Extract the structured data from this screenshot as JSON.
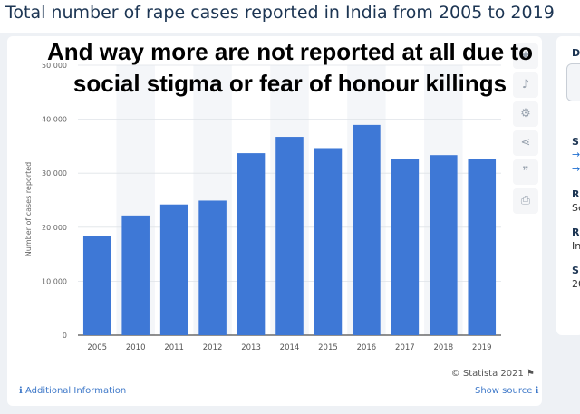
{
  "page": {
    "title": "Total number of rape cases reported in India from 2005 to 2019",
    "overlay_lines": [
      "And way more are not reported at all due to",
      "social stigma or fear of honour killings"
    ]
  },
  "toolbar": {
    "icons": [
      "star-icon",
      "bell-icon",
      "gear-icon",
      "share-icon",
      "quote-icon",
      "print-icon"
    ]
  },
  "footer": {
    "credit": "© Statista 2021",
    "additional_info": "Additional Information",
    "show_source": "Show source"
  },
  "side_panel": {
    "heading": "D",
    "items": [
      "S",
      "R",
      "Se",
      "R",
      "In",
      "S",
      "20"
    ]
  },
  "colors": {
    "bar": "#3e78d6",
    "title": "#1c3553",
    "link": "#3f79c9"
  },
  "chart_data": {
    "type": "bar",
    "title": "",
    "xlabel": "",
    "ylabel": "Number of cases reported",
    "categories": [
      "2005",
      "2010",
      "2011",
      "2012",
      "2013",
      "2014",
      "2015",
      "2016",
      "2017",
      "2018",
      "2019"
    ],
    "values": [
      18359,
      22172,
      24206,
      24923,
      33707,
      36735,
      34651,
      38947,
      32559,
      33356,
      32659
    ],
    "ylim": [
      0,
      50000
    ],
    "yticks": [
      0,
      10000,
      20000,
      30000,
      40000,
      50000
    ],
    "ytick_labels": [
      "0",
      "10 000",
      "20 000",
      "30 000",
      "40 000",
      "50 000"
    ],
    "grid": true,
    "legend": "none"
  }
}
